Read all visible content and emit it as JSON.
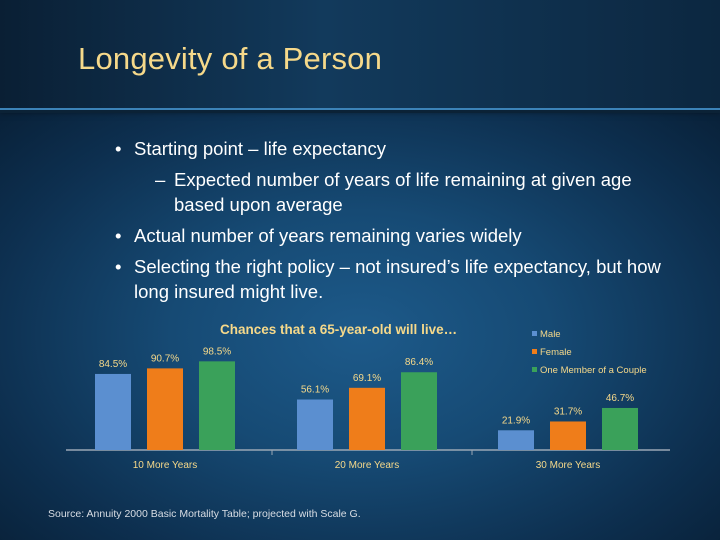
{
  "slide": {
    "title": "Longevity of a Person",
    "bullets": [
      {
        "text": "Starting point – life expectancy",
        "level": 1
      },
      {
        "text": "Expected number of years of life remaining at given age based upon average",
        "level": 2
      },
      {
        "text": "Actual number of years remaining varies widely",
        "level": 1
      },
      {
        "text": "Selecting the right policy – not insured’s life expectancy, but how long insured might live.",
        "level": 1
      }
    ],
    "bullet_marks": {
      "level1": "•",
      "level2": "–"
    },
    "source": "Source: Annuity 2000 Basic Mortality Table; projected with Scale G."
  },
  "chart_data": {
    "type": "bar",
    "title": "Chances that a 65-year-old will live…",
    "categories": [
      "10 More Years",
      "20 More Years",
      "30 More Years"
    ],
    "series": [
      {
        "name": "Male",
        "values": [
          84.5,
          56.1,
          21.9
        ],
        "labels": [
          "84.5%",
          "56.1%",
          "21.9%"
        ],
        "color": "#5b8fd0"
      },
      {
        "name": "Female",
        "values": [
          90.7,
          69.1,
          31.7
        ],
        "labels": [
          "90.7%",
          "69.1%",
          "31.7%"
        ],
        "color": "#ef7d1a"
      },
      {
        "name": "One Member of a Couple",
        "values": [
          98.5,
          86.4,
          46.7
        ],
        "labels": [
          "98.5%",
          "86.4%",
          "46.7%"
        ],
        "color": "#3aa15a"
      }
    ],
    "ylim": [
      0,
      100
    ],
    "grid": false,
    "legend": "top-right",
    "label_color": "#f6d98a"
  }
}
